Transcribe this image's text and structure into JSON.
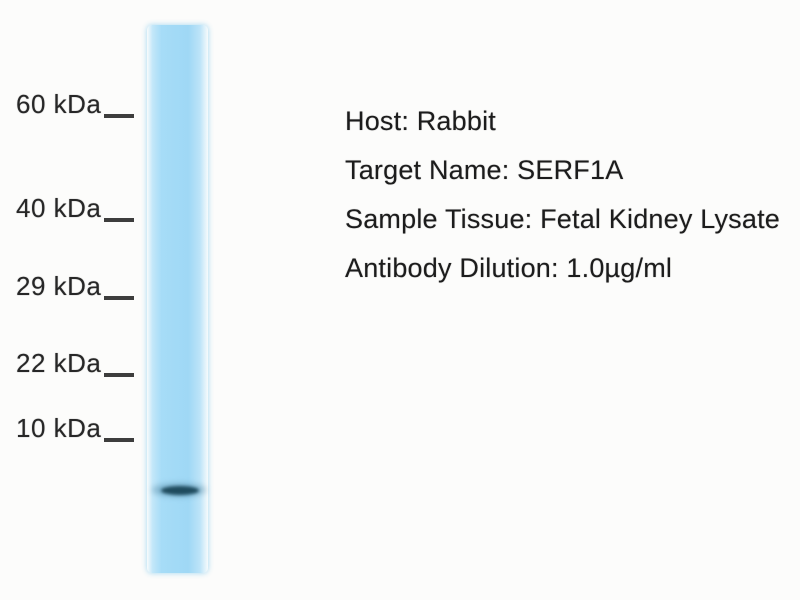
{
  "figure": {
    "type": "western-blot",
    "lane": {
      "color": "#a2daf6",
      "band_color": "#1f4b5e"
    },
    "markers": [
      {
        "label": "60 kDa"
      },
      {
        "label": "40 kDa"
      },
      {
        "label": "29 kDa"
      },
      {
        "label": "22 kDa"
      },
      {
        "label": "10 kDa"
      }
    ],
    "annotations": [
      "Host: Rabbit",
      "Target Name: SERF1A",
      "Sample Tissue: Fetal Kidney Lysate",
      "Antibody Dilution: 1.0µg/ml"
    ]
  }
}
